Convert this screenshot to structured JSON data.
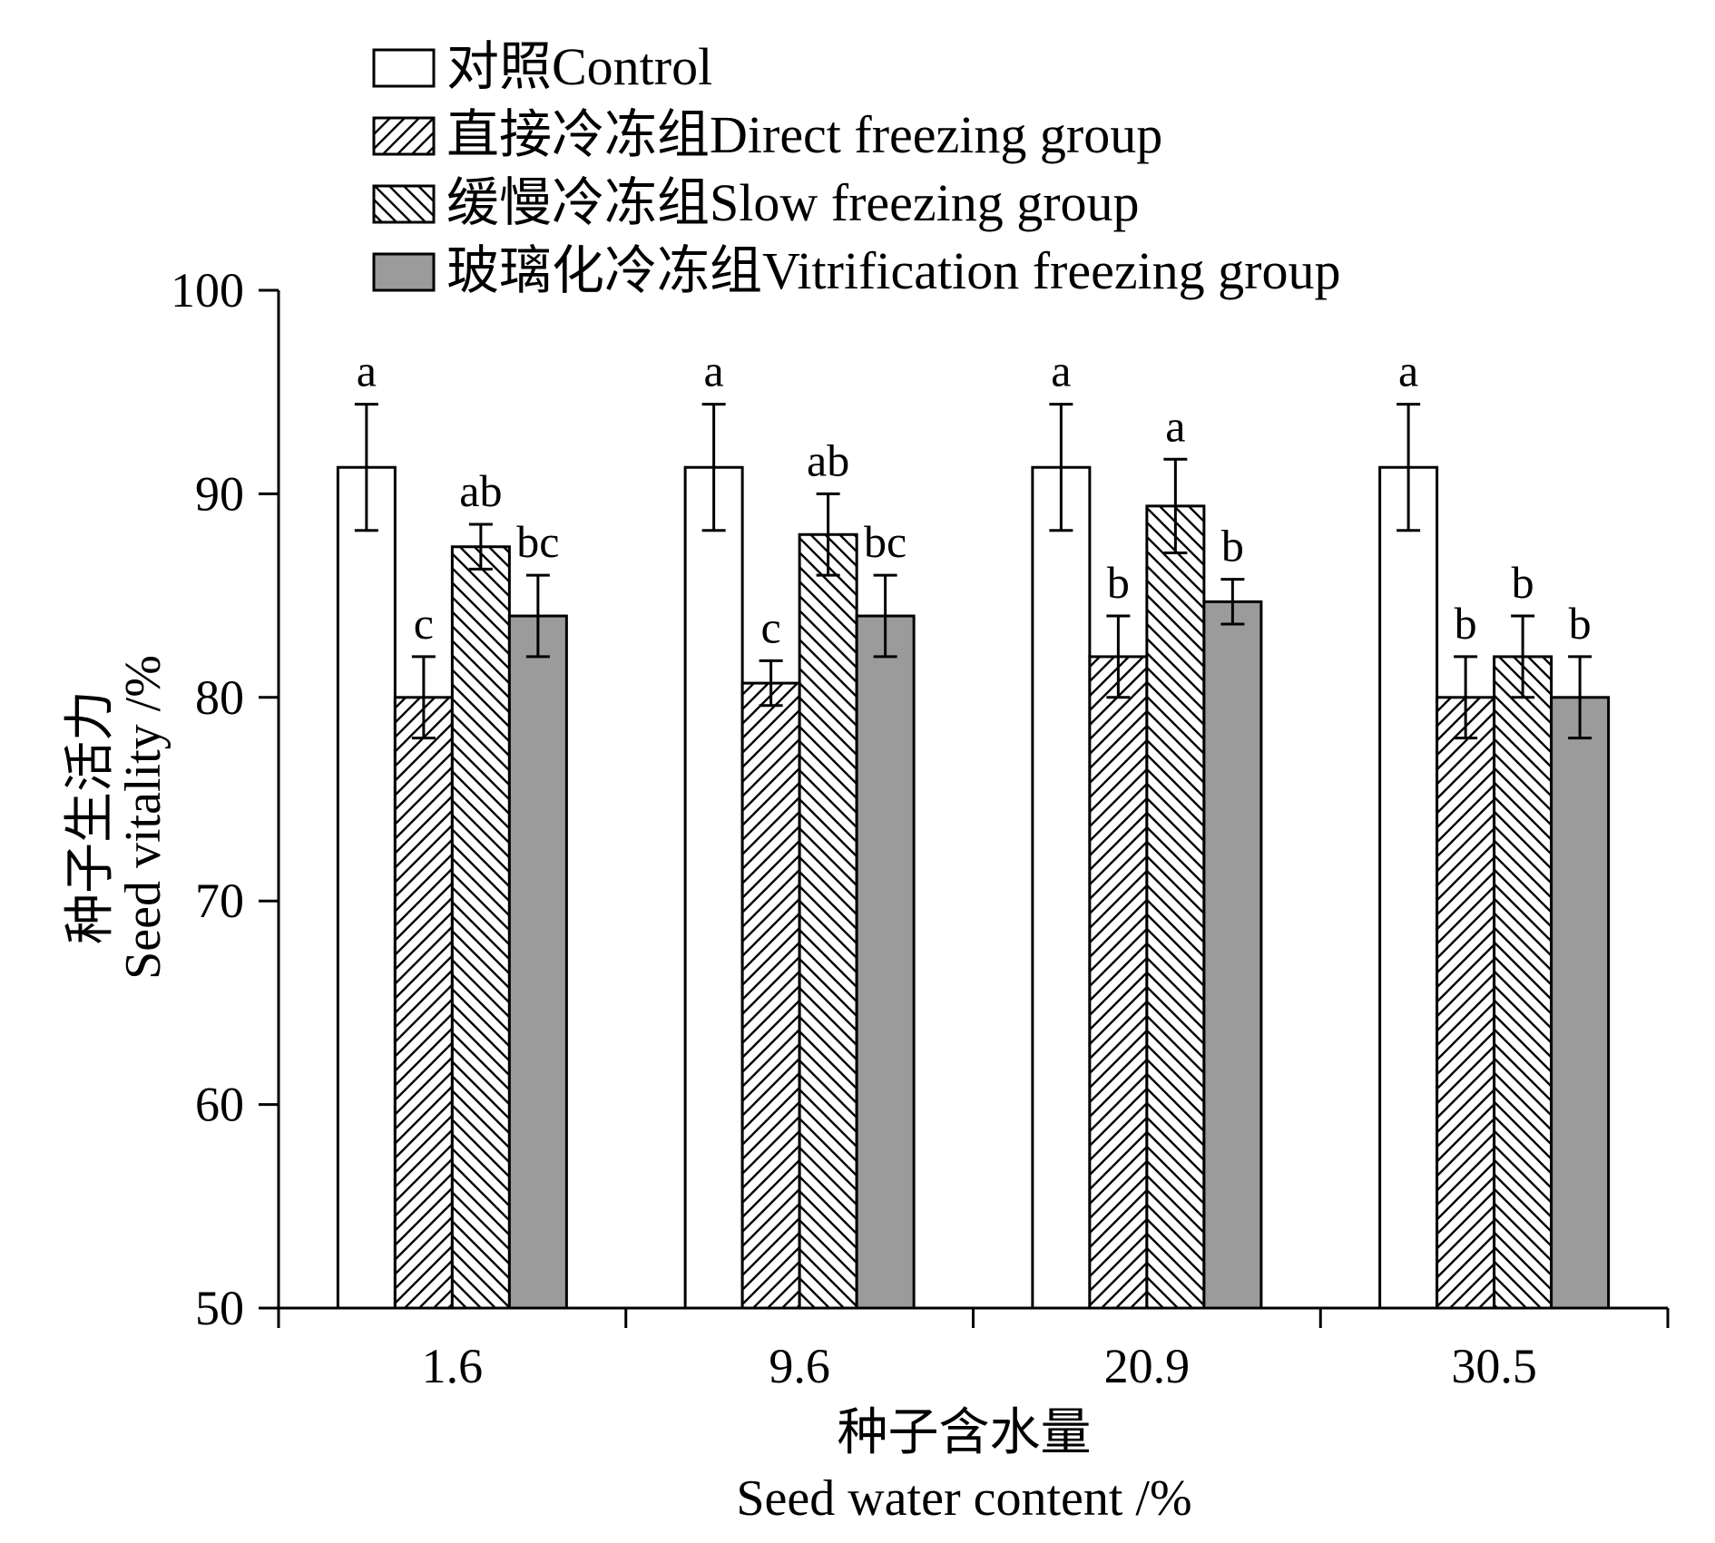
{
  "chart_data": {
    "type": "bar",
    "categories": [
      "1.6",
      "9.6",
      "20.9",
      "30.5"
    ],
    "xlabel_cn": "种子含水量",
    "xlabel_en": "Seed water content /%",
    "ylabel_cn": "种子生活力",
    "ylabel_en": "Seed vitality /%",
    "ylim": [
      50,
      100
    ],
    "yticks": [
      "50",
      "60",
      "70",
      "80",
      "90",
      "100"
    ],
    "legend_position": "top",
    "series": [
      {
        "name": "对照Control",
        "fill": "white",
        "values": [
          91.3,
          91.3,
          91.3,
          91.3
        ],
        "errors": [
          3.1,
          3.1,
          3.1,
          3.1
        ],
        "letters": [
          "a",
          "a",
          "a",
          "a"
        ]
      },
      {
        "name": "直接冷冻组Direct freezing group",
        "fill": "hatch-forward",
        "values": [
          80.0,
          80.7,
          82.0,
          80.0
        ],
        "errors": [
          2.0,
          1.1,
          2.0,
          2.0
        ],
        "letters": [
          "c",
          "c",
          "b",
          "b"
        ]
      },
      {
        "name": "缓慢冷冻组Slow freezing group",
        "fill": "hatch-backward",
        "values": [
          87.4,
          88.0,
          89.4,
          82.0
        ],
        "errors": [
          1.1,
          2.0,
          2.3,
          2.0
        ],
        "letters": [
          "ab",
          "ab",
          "a",
          "b"
        ]
      },
      {
        "name": "玻璃化冷冻组Vitrification freezing group",
        "fill": "gray",
        "values": [
          84.0,
          84.0,
          84.7,
          80.0
        ],
        "errors": [
          2.0,
          2.0,
          1.1,
          2.0
        ],
        "letters": [
          "bc",
          "bc",
          "b",
          "b"
        ]
      }
    ],
    "colors": {
      "gray_fill": "#9b9b9b",
      "stroke": "#000000",
      "background": "#ffffff"
    }
  }
}
